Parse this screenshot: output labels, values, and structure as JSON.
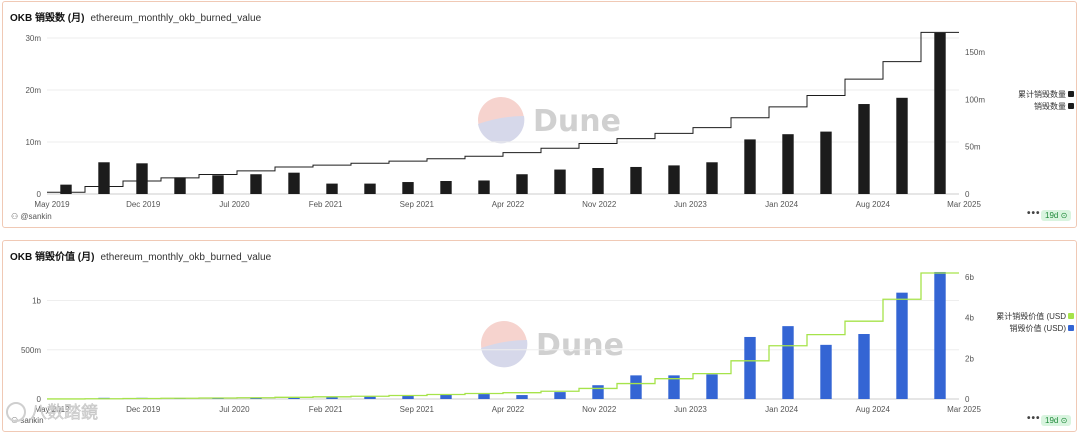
{
  "panels": [
    {
      "title_bold": "OKB 销毁数 (月)",
      "title_query": "ethereum_monthly_okb_burned_value",
      "author": "@sankin",
      "badge": "19d",
      "watermark": "Dune",
      "legend": [
        "累计销毁数量",
        "销毁数量"
      ]
    },
    {
      "title_bold": "OKB 销毁价值 (月)",
      "title_query": "ethereum_monthly_okb_burned_value",
      "author": "sankin",
      "badge": "19d",
      "watermark": "Dune",
      "legend": [
        "累计销毁价值 (USD",
        "销毁价值 (USD)"
      ]
    }
  ],
  "overlay_watermark": "八数踏鏡",
  "colors": {
    "bar1": "#1c1c1c",
    "line1": "#1c1c1c",
    "bar2": "#3465d4",
    "line2": "#a6e34a",
    "grid": "#eeeeee",
    "axis": "#555555"
  },
  "chart_data": [
    {
      "type": "bar",
      "x_tick_labels": [
        "May 2019",
        "Dec 2019",
        "Jul 2020",
        "Feb 2021",
        "Sep 2021",
        "Apr 2022",
        "Nov 2022",
        "Jun 2023",
        "Jan 2024",
        "Aug 2024",
        "Mar 2025"
      ],
      "y_left": {
        "ticks": [
          "0",
          "10m",
          "20m",
          "30m"
        ],
        "range": [
          0,
          30
        ]
      },
      "y_right": {
        "ticks": [
          "0",
          "50m",
          "100m",
          "150m"
        ],
        "range": [
          0,
          165
        ]
      },
      "series": [
        {
          "name": "销毁数量",
          "axis": "left",
          "type": "bar",
          "values": [
            1.8,
            6.1,
            5.9,
            3.2,
            3.6,
            3.8,
            4.1,
            2.0,
            2.0,
            2.3,
            2.5,
            2.6,
            3.8,
            4.7,
            5.0,
            5.2,
            5.5,
            6.1,
            10.5,
            11.5,
            12.0,
            17.3,
            18.5,
            31.0
          ]
        },
        {
          "name": "累计销毁数量",
          "axis": "right",
          "type": "line",
          "values": [
            1.8,
            7.9,
            13.8,
            17.0,
            20.6,
            24.4,
            28.5,
            30.5,
            32.5,
            34.8,
            37.3,
            39.9,
            43.7,
            48.4,
            53.4,
            58.6,
            64.1,
            70.2,
            80.7,
            92.2,
            104.2,
            121.5,
            140.0,
            171.0
          ]
        }
      ]
    },
    {
      "type": "bar",
      "x_tick_labels": [
        "May 2019",
        "Dec 2019",
        "Jul 2020",
        "Feb 2021",
        "Sep 2021",
        "Apr 2022",
        "Nov 2022",
        "Jun 2023",
        "Jan 2024",
        "Aug 2024",
        "Mar 2025"
      ],
      "y_left": {
        "ticks": [
          "0",
          "500m",
          "1b"
        ],
        "range": [
          0,
          1.3
        ]
      },
      "y_right": {
        "ticks": [
          "0",
          "2b",
          "4b",
          "6b"
        ],
        "range": [
          0,
          6.3
        ]
      },
      "series": [
        {
          "name": "销毁价值 (USD)",
          "axis": "left",
          "type": "bar",
          "values": [
            0.002,
            0.012,
            0.012,
            0.01,
            0.012,
            0.015,
            0.02,
            0.025,
            0.028,
            0.035,
            0.05,
            0.05,
            0.04,
            0.07,
            0.14,
            0.24,
            0.24,
            0.25,
            0.63,
            0.74,
            0.55,
            0.66,
            1.08,
            1.29
          ]
        },
        {
          "name": "累计销毁价值 (USD",
          "axis": "right",
          "type": "line",
          "values": [
            0.002,
            0.014,
            0.026,
            0.036,
            0.048,
            0.063,
            0.083,
            0.108,
            0.136,
            0.171,
            0.221,
            0.271,
            0.311,
            0.381,
            0.52,
            0.76,
            1.0,
            1.25,
            1.88,
            2.62,
            3.17,
            3.83,
            4.91,
            6.2
          ]
        }
      ]
    }
  ]
}
